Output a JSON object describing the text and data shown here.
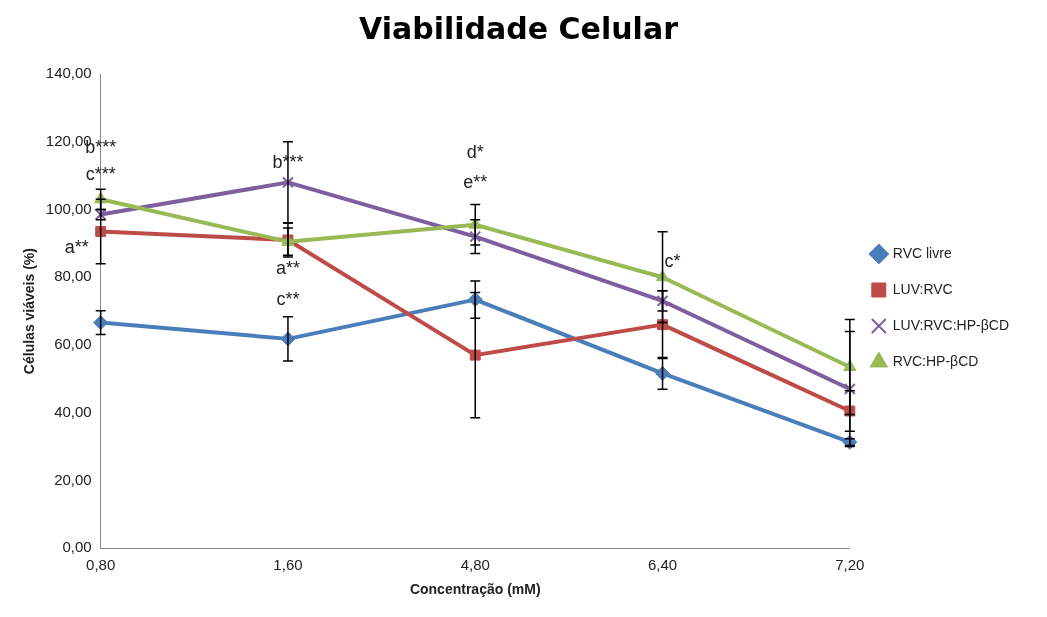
{
  "chart_data": {
    "type": "line",
    "title": "Viabilidade Celular",
    "xlabel": "Concentração (mM)",
    "ylabel": "Células viáveis (%)",
    "categories": [
      "0,80",
      "1,60",
      "4,80",
      "6,40",
      "7,20"
    ],
    "series": [
      {
        "name": "RVC livre",
        "color": "#4a7ebb",
        "marker": "diamond",
        "values": [
          66.6,
          61.8,
          73.4,
          51.6,
          31.3
        ],
        "errors": [
          3.5,
          6.5,
          5.5,
          4.7,
          1
        ]
      },
      {
        "name": "LUV:RVC",
        "color": "#be4b48",
        "marker": "square",
        "values": [
          93.5,
          91,
          57,
          66,
          40.5
        ],
        "errors": [
          9.5,
          5,
          18.5,
          10,
          6
        ]
      },
      {
        "name": "LUV:RVC:HP-βCD",
        "color": "#7d5fa0",
        "marker": "cross",
        "values": [
          98.5,
          108,
          92,
          73,
          47
        ],
        "errors": [
          1.5,
          12,
          5,
          3,
          17
        ]
      },
      {
        "name": "RVC:HP-βCD",
        "color": "#98b954",
        "marker": "triangle",
        "values": [
          103,
          90.5,
          95.5,
          80,
          53.5
        ],
        "errors": [
          3,
          4,
          6,
          13.4,
          14
        ]
      }
    ],
    "ylim": [
      0,
      140
    ],
    "yticks": [
      {
        "value": 0,
        "label": "0,00"
      },
      {
        "value": 20,
        "label": "20,00"
      },
      {
        "value": 40,
        "label": "40,00"
      },
      {
        "value": 60,
        "label": "60,00"
      },
      {
        "value": 80,
        "label": "80,00"
      },
      {
        "value": 100,
        "label": "100,00"
      },
      {
        "value": 120,
        "label": "120,00"
      },
      {
        "value": 140,
        "label": "140,00"
      }
    ],
    "annotations": [
      "b***",
      "c***",
      "a**",
      "b***",
      "a**",
      "c**",
      "d*",
      "e**",
      "c*"
    ],
    "legend": "right",
    "grid": false,
    "line_style": "solid"
  }
}
